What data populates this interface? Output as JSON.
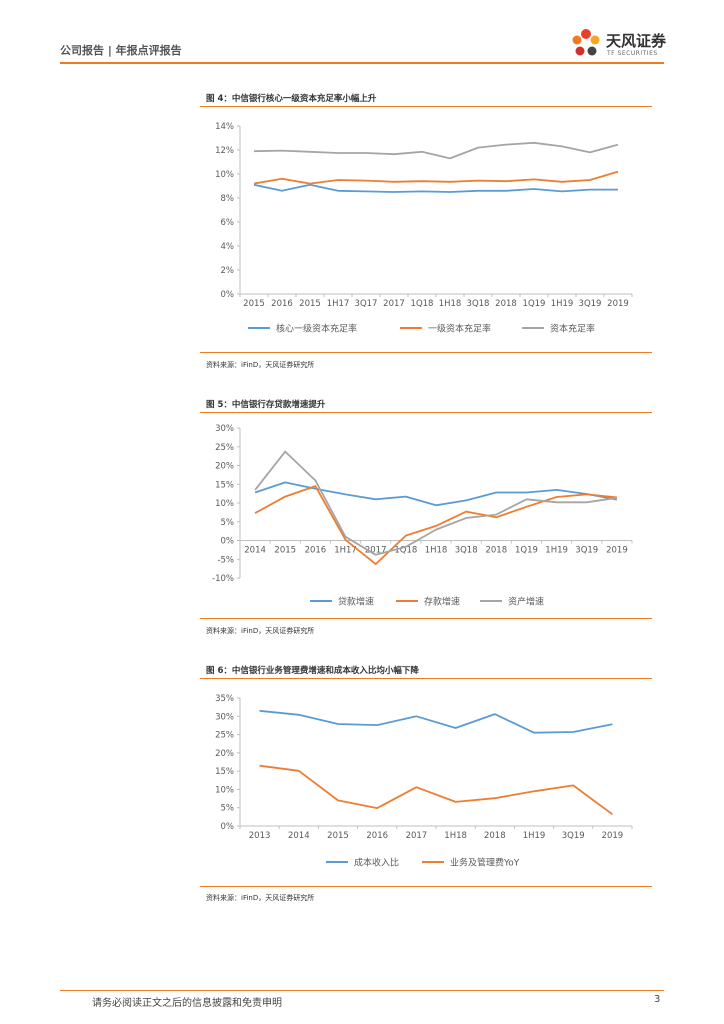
{
  "header": {
    "title": "公司报告 | 年报点评报告",
    "logo_cn": "天风证券",
    "logo_en": "TF SECURITIES"
  },
  "figures": [
    {
      "title": "图 4：中信银行核心一级资本充足率小幅上升",
      "source": "资料来源：iFinD，天风证券研究所"
    },
    {
      "title": "图 5：中信银行存贷款增速提升",
      "source": "资料来源：iFinD，天风证券研究所"
    },
    {
      "title": "图 6：中信银行业务管理费增速和成本收入比均小幅下降",
      "source": "资料来源：iFinD，天风证券研究所"
    }
  ],
  "chart_data": [
    {
      "type": "line",
      "title": "图 4：中信银行核心一级资本充足率小幅上升",
      "categories": [
        "2015",
        "2016",
        "2015",
        "1H17",
        "3Q17",
        "2017",
        "1Q18",
        "1H18",
        "3Q18",
        "2018",
        "1Q19",
        "1H19",
        "3Q19",
        "2019"
      ],
      "ylim": [
        0,
        14
      ],
      "yticks": [
        0,
        2,
        4,
        6,
        8,
        10,
        12,
        14
      ],
      "yformat": "%",
      "legend": "bottom",
      "series": [
        {
          "name": "核心一级资本充足率",
          "color": "#5b9bd5",
          "values": [
            9.1,
            8.6,
            9.1,
            8.6,
            8.55,
            8.5,
            8.55,
            8.5,
            8.6,
            8.6,
            8.75,
            8.55,
            8.7,
            8.7
          ]
        },
        {
          "name": "一级资本充足率",
          "color": "#ed7d31",
          "values": [
            9.2,
            9.6,
            9.2,
            9.5,
            9.45,
            9.35,
            9.4,
            9.35,
            9.45,
            9.4,
            9.55,
            9.35,
            9.5,
            10.2
          ]
        },
        {
          "name": "资本充足率",
          "color": "#a5a5a5",
          "values": [
            11.9,
            11.95,
            11.85,
            11.75,
            11.75,
            11.65,
            11.85,
            11.3,
            12.2,
            12.45,
            12.6,
            12.3,
            11.8,
            12.45
          ]
        }
      ]
    },
    {
      "type": "line",
      "title": "图 5：中信银行存贷款增速提升",
      "categories": [
        "2014",
        "2015",
        "2016",
        "1H17",
        "2017",
        "1Q18",
        "1H18",
        "3Q18",
        "2018",
        "1Q19",
        "1H19",
        "3Q19",
        "2019"
      ],
      "ylim": [
        -10,
        30
      ],
      "yticks": [
        -10,
        -5,
        0,
        5,
        10,
        15,
        20,
        25,
        30
      ],
      "yformat": "%",
      "legend": "bottom",
      "series": [
        {
          "name": "贷款增速",
          "color": "#5b9bd5",
          "values": [
            12.8,
            15.5,
            13.8,
            12.3,
            11.0,
            11.7,
            9.4,
            10.7,
            12.8,
            12.8,
            13.5,
            12.4,
            10.9
          ]
        },
        {
          "name": "存款增速",
          "color": "#ed7d31",
          "values": [
            7.3,
            11.7,
            14.5,
            0.2,
            -6.3,
            1.3,
            3.9,
            7.7,
            6.2,
            9.0,
            11.6,
            12.3,
            11.5
          ]
        },
        {
          "name": "资产增速",
          "color": "#a5a5a5",
          "values": [
            13.5,
            23.7,
            16.0,
            1.0,
            -3.8,
            -1.7,
            2.9,
            6.0,
            6.9,
            11.0,
            10.2,
            10.2,
            11.4
          ]
        }
      ]
    },
    {
      "type": "line",
      "title": "图 6：中信银行业务管理费增速和成本收入比均小幅下降",
      "categories": [
        "2013",
        "2014",
        "2015",
        "2016",
        "2017",
        "1H18",
        "2018",
        "1H19",
        "3Q19",
        "2019"
      ],
      "ylim": [
        0,
        35
      ],
      "yticks": [
        0,
        5,
        10,
        15,
        20,
        25,
        30,
        35
      ],
      "yformat": "%",
      "legend": "bottom",
      "series": [
        {
          "name": "成本收入比",
          "color": "#5b9bd5",
          "values": [
            31.5,
            30.4,
            27.9,
            27.6,
            30.0,
            26.8,
            30.6,
            25.5,
            25.7,
            27.8
          ]
        },
        {
          "name": "业务及管理费YoY",
          "color": "#ed7d31",
          "values": [
            16.5,
            15.1,
            7.0,
            4.9,
            10.6,
            6.6,
            7.6,
            9.5,
            11.1,
            3.2
          ]
        }
      ]
    }
  ],
  "footer": {
    "disclaimer": "请务必阅读正文之后的信息披露和免责申明",
    "page": "3"
  }
}
